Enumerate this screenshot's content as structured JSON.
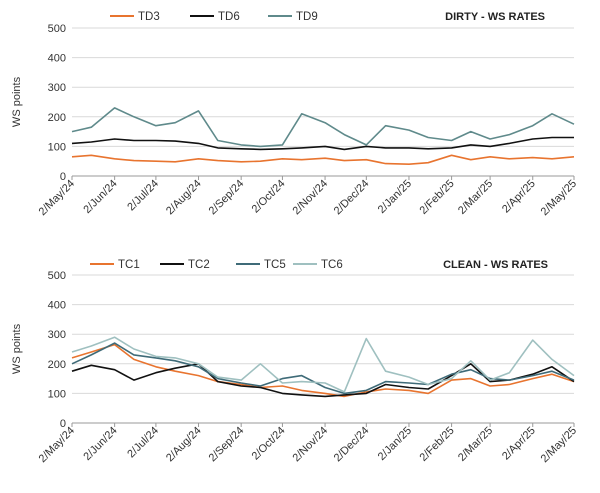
{
  "chart_data": [
    {
      "type": "line",
      "title": "DIRTY - WS RATES",
      "ylabel": "WS points",
      "xlabel": "",
      "ylim": [
        0,
        500
      ],
      "yticks": [
        0,
        100,
        200,
        300,
        400,
        500
      ],
      "grid": "horizontal",
      "legend_position": "top-left",
      "x_start": "2024-05-02",
      "x_end": "2025-05-02",
      "x": [
        "2024-05-02",
        "2024-05-16",
        "2024-06-02",
        "2024-06-16",
        "2024-07-02",
        "2024-07-16",
        "2024-08-02",
        "2024-08-16",
        "2024-09-02",
        "2024-09-16",
        "2024-10-02",
        "2024-10-16",
        "2024-11-02",
        "2024-11-16",
        "2024-12-02",
        "2024-12-16",
        "2025-01-02",
        "2025-01-16",
        "2025-02-02",
        "2025-02-16",
        "2025-03-02",
        "2025-03-16",
        "2025-04-02",
        "2025-04-16",
        "2025-05-02"
      ],
      "xticks": [
        "2/May/24",
        "2/Jun/24",
        "2/Jul/24",
        "2/Aug/24",
        "2/Sep/24",
        "2/Oct/24",
        "2/Nov/24",
        "2/Dec/24",
        "2/Jan/25",
        "2/Feb/25",
        "2/Mar/25",
        "2/Apr/25",
        "2/May/25"
      ],
      "series": [
        {
          "name": "TD3",
          "color": "#e8742f",
          "values": [
            65,
            70,
            58,
            52,
            50,
            48,
            58,
            52,
            48,
            50,
            58,
            55,
            60,
            52,
            55,
            42,
            40,
            45,
            70,
            55,
            65,
            58,
            62,
            58,
            65
          ]
        },
        {
          "name": "TD6",
          "color": "#111111",
          "values": [
            110,
            115,
            125,
            120,
            120,
            118,
            110,
            95,
            92,
            90,
            92,
            95,
            100,
            90,
            100,
            95,
            95,
            92,
            95,
            105,
            100,
            110,
            125,
            130,
            130
          ]
        },
        {
          "name": "TD9",
          "color": "#5f8a8b",
          "values": [
            150,
            165,
            230,
            200,
            170,
            180,
            220,
            120,
            105,
            100,
            105,
            210,
            180,
            140,
            105,
            170,
            155,
            130,
            120,
            150,
            125,
            140,
            170,
            210,
            175
          ]
        }
      ]
    },
    {
      "type": "line",
      "title": "CLEAN - WS RATES",
      "ylabel": "WS points",
      "xlabel": "",
      "ylim": [
        0,
        500
      ],
      "yticks": [
        0,
        100,
        200,
        300,
        400,
        500
      ],
      "grid": "horizontal",
      "legend_position": "top-left",
      "x_start": "2024-05-02",
      "x_end": "2025-05-02",
      "x": [
        "2024-05-02",
        "2024-05-16",
        "2024-06-02",
        "2024-06-16",
        "2024-07-02",
        "2024-07-16",
        "2024-08-02",
        "2024-08-16",
        "2024-09-02",
        "2024-09-16",
        "2024-10-02",
        "2024-10-16",
        "2024-11-02",
        "2024-11-16",
        "2024-12-02",
        "2024-12-16",
        "2025-01-02",
        "2025-01-16",
        "2025-02-02",
        "2025-02-16",
        "2025-03-02",
        "2025-03-16",
        "2025-04-02",
        "2025-04-16",
        "2025-05-02"
      ],
      "xticks": [
        "2/May/24",
        "2/Jun/24",
        "2/Jul/24",
        "2/Aug/24",
        "2/Sep/24",
        "2/Oct/24",
        "2/Nov/24",
        "2/Dec/24",
        "2/Jan/25",
        "2/Feb/25",
        "2/Mar/25",
        "2/Apr/25",
        "2/May/25"
      ],
      "series": [
        {
          "name": "TC1",
          "color": "#e8742f",
          "values": [
            220,
            240,
            265,
            215,
            190,
            175,
            160,
            140,
            130,
            120,
            125,
            110,
            100,
            90,
            105,
            115,
            110,
            100,
            145,
            150,
            125,
            130,
            150,
            165,
            140
          ]
        },
        {
          "name": "TC2",
          "color": "#111111",
          "values": [
            175,
            195,
            180,
            145,
            170,
            185,
            200,
            140,
            125,
            120,
            100,
            95,
            90,
            95,
            100,
            130,
            120,
            115,
            160,
            200,
            140,
            145,
            165,
            190,
            140
          ]
        },
        {
          "name": "TC5",
          "color": "#3f6b78",
          "values": [
            200,
            230,
            270,
            230,
            220,
            210,
            190,
            150,
            135,
            125,
            150,
            160,
            120,
            100,
            110,
            140,
            135,
            130,
            165,
            180,
            150,
            145,
            160,
            175,
            145
          ]
        },
        {
          "name": "TC6",
          "color": "#9fc0c0",
          "values": [
            240,
            260,
            290,
            250,
            225,
            220,
            200,
            155,
            145,
            200,
            135,
            140,
            135,
            105,
            285,
            175,
            155,
            130,
            150,
            210,
            145,
            170,
            280,
            215,
            160
          ]
        }
      ]
    }
  ]
}
